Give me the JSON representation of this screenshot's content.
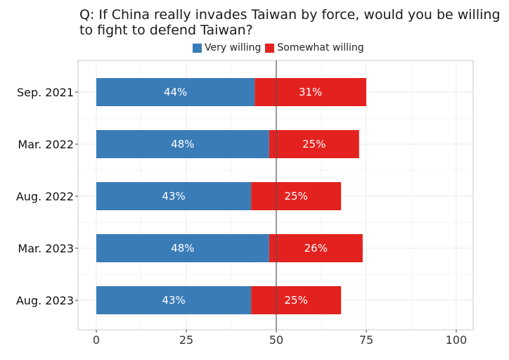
{
  "chart_data": {
    "type": "bar",
    "orientation": "horizontal",
    "stacked": true,
    "title": "Q: If China really invades Taiwan by force, would you be willing to fight to defend Taiwan?",
    "categories": [
      "Sep. 2021",
      "Mar. 2022",
      "Aug. 2022",
      "Mar. 2023",
      "Aug. 2023"
    ],
    "series": [
      {
        "name": "Very willing",
        "color": "#3a7cb8",
        "values": [
          44,
          48,
          43,
          48,
          43
        ],
        "labels": [
          "44%",
          "48%",
          "43%",
          "48%",
          "43%"
        ]
      },
      {
        "name": "Somewhat willing",
        "color": "#e3221f",
        "values": [
          31,
          25,
          25,
          26,
          25
        ],
        "labels": [
          "31%",
          "25%",
          "25%",
          "26%",
          "25%"
        ]
      }
    ],
    "xlim": [
      0,
      100
    ],
    "xticks": [
      "0",
      "25",
      "50",
      "75",
      "100"
    ],
    "reference_line": 50,
    "grid": true,
    "legend_position": "top"
  }
}
